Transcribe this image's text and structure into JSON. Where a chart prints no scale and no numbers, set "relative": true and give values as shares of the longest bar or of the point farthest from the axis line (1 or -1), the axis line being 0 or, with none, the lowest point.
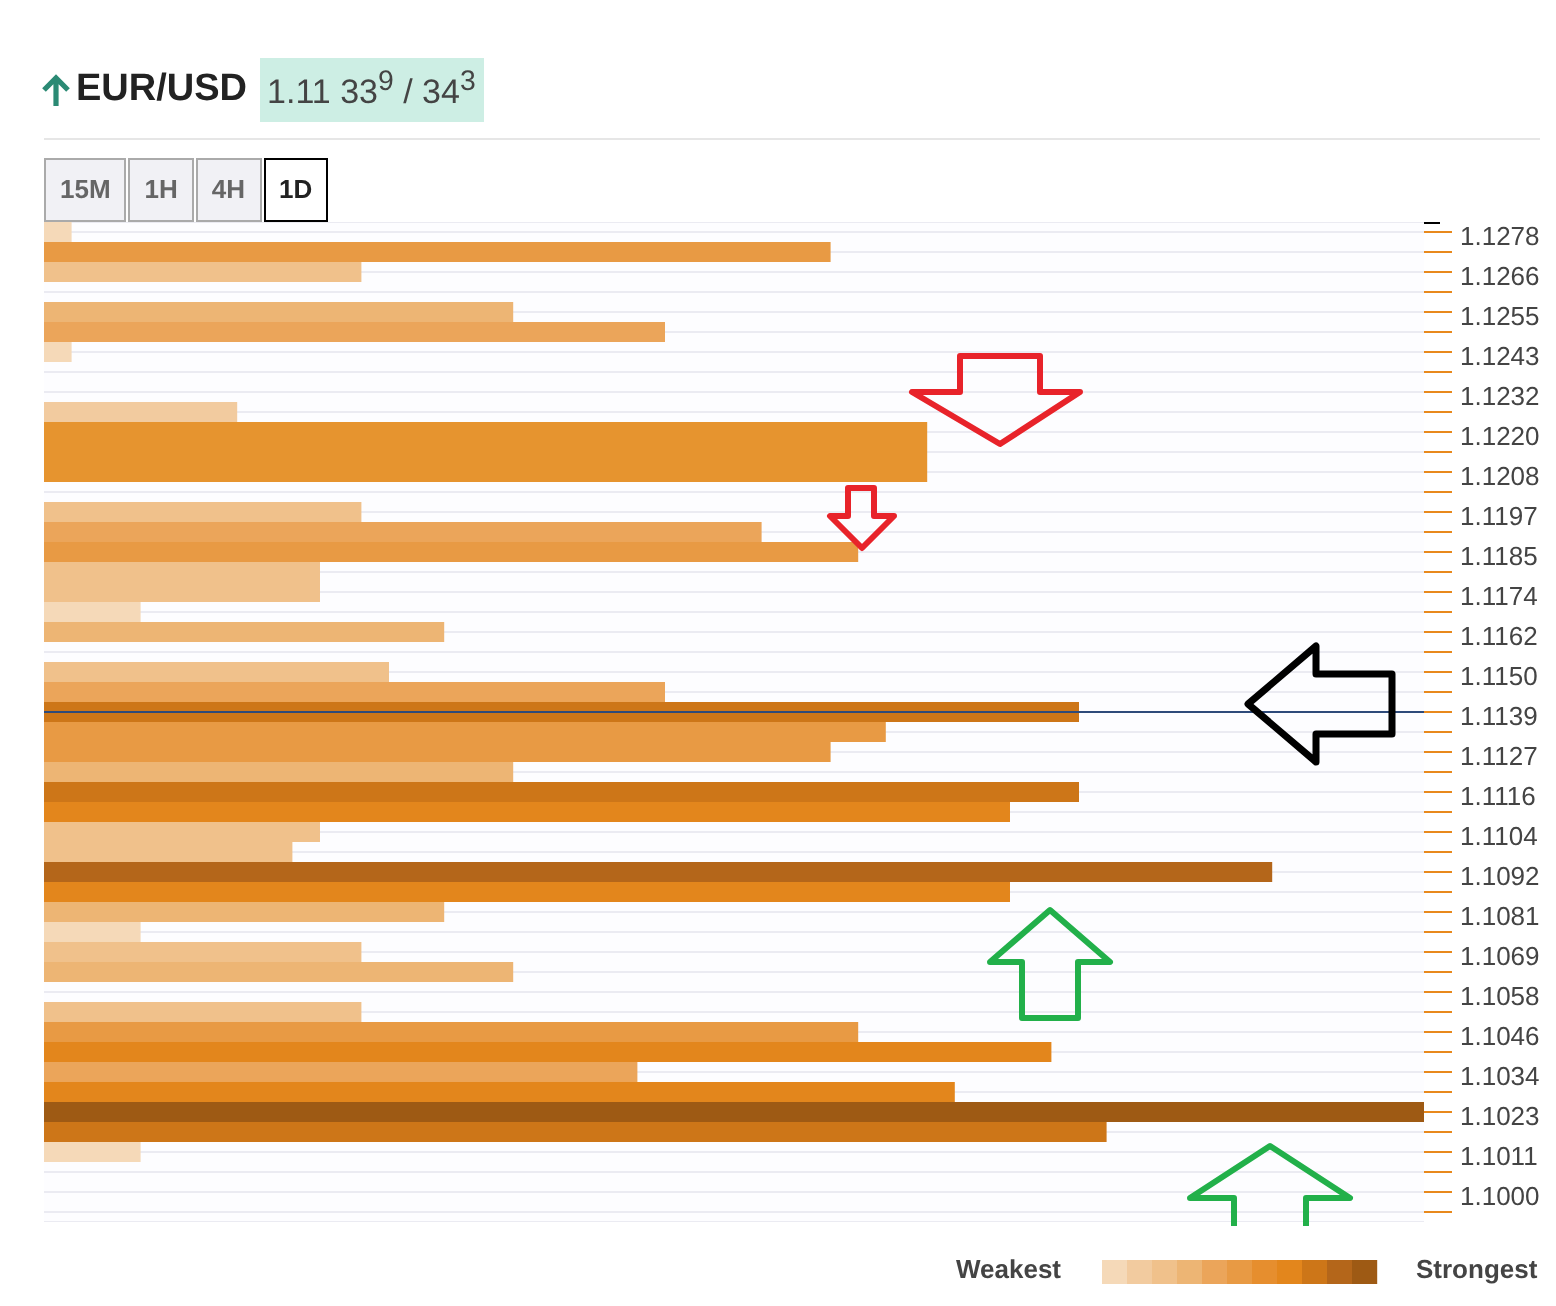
{
  "chart_data": {
    "type": "bar",
    "orientation": "horizontal",
    "relative": true,
    "title": "EUR/USD",
    "subtitle": "1.11 33$^{9}$ / 34$^{3}$",
    "annotations": [
      "15M",
      "1H",
      "4H",
      "1D",
      "Weakest",
      "Strongest"
    ],
    "categories": [
      "1.1278",
      null,
      "1.1266",
      null,
      "1.1255",
      null,
      "1.1243",
      null,
      "1.1232",
      null,
      "1.1220",
      null,
      "1.1208",
      null,
      "1.1197",
      null,
      "1.1185",
      null,
      "1.1174",
      null,
      "1.1162",
      null,
      "1.1150",
      null,
      "1.1139",
      null,
      "1.1127",
      null,
      "1.1116",
      null,
      "1.1104",
      null,
      "1.1092",
      null,
      "1.1081",
      null,
      "1.1069",
      null,
      "1.1058",
      null,
      "1.1046",
      null,
      "1.1034",
      null,
      "1.1023",
      null,
      "1.1011",
      null,
      "1.1000",
      null
    ],
    "values": [
      0.02,
      0.57,
      0.23,
      null,
      0.34,
      0.45,
      0.02,
      null,
      null,
      0.14,
      0.64,
      0.64,
      0.64,
      null,
      0.23,
      0.52,
      0.59,
      0.2,
      0.2,
      0.07,
      0.29,
      null,
      0.25,
      0.45,
      0.75,
      0.61,
      0.57,
      0.34,
      0.75,
      0.7,
      0.2,
      0.18,
      0.89,
      0.7,
      0.29,
      0.07,
      0.23,
      0.34,
      null,
      0.23,
      0.59,
      0.73,
      0.43,
      0.66,
      1,
      0.77,
      0.07,
      null,
      null,
      null
    ],
    "colors": [
      "#f5d9b8",
      "#e89a44",
      "#f0c18b",
      null,
      "#edb574",
      "#eba55a",
      "#f5d9b8",
      null,
      null,
      "#f2cb9f",
      "#e6942f",
      "#e6942f",
      "#e6942f",
      null,
      "#f0c18b",
      "#eba55a",
      "#e89a44",
      "#f0c18b",
      "#f0c18b",
      "#f5d9b8",
      "#edb574",
      null,
      "#f0c18b",
      "#eba55a",
      "#cd7618",
      "#e89a44",
      "#e89a44",
      "#edb574",
      "#cd7618",
      "#e3861c",
      "#f0c18b",
      "#f0c18b",
      "#b4661a",
      "#e3861c",
      "#edb574",
      "#f5d9b8",
      "#f0c18b",
      "#edb574",
      null,
      "#f0c18b",
      "#e89a44",
      "#e3861c",
      "#eba55a",
      "#e3861c",
      "#9e5a14",
      "#cd7618",
      "#f5d9b8",
      null,
      null,
      null
    ],
    "ref_lines": [
      {
        "axis": "y",
        "value": "1.1139",
        "color": "#2e4a7a"
      }
    ],
    "grid": "y"
  }
}
